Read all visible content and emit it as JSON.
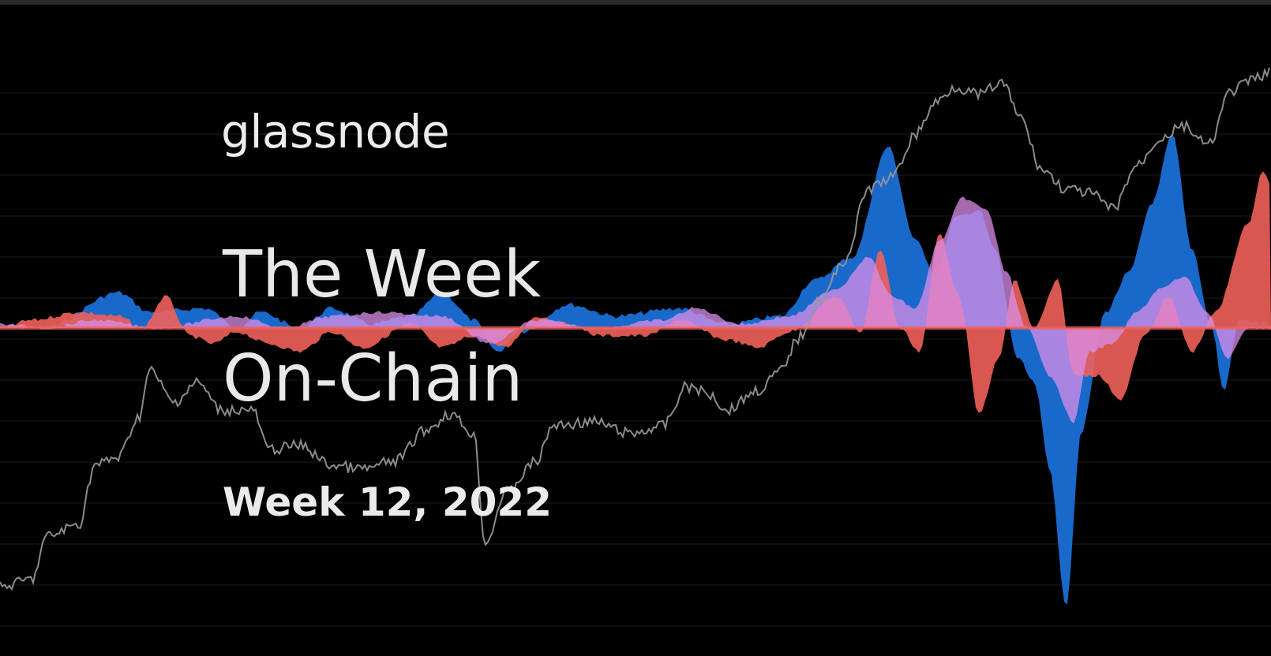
{
  "brand": {
    "name": "glassnode"
  },
  "title": {
    "line1": "The Week",
    "line2": "On-Chain"
  },
  "subtitle": "Week 12, 2022",
  "colors": {
    "background": "#000000",
    "grid": "#1c1c1c",
    "price_line": "#9a9a9a",
    "blue": "#1a6fd6",
    "red": "#f0605a",
    "pink": "#d98ee8",
    "text": "#eaeaea"
  }
}
